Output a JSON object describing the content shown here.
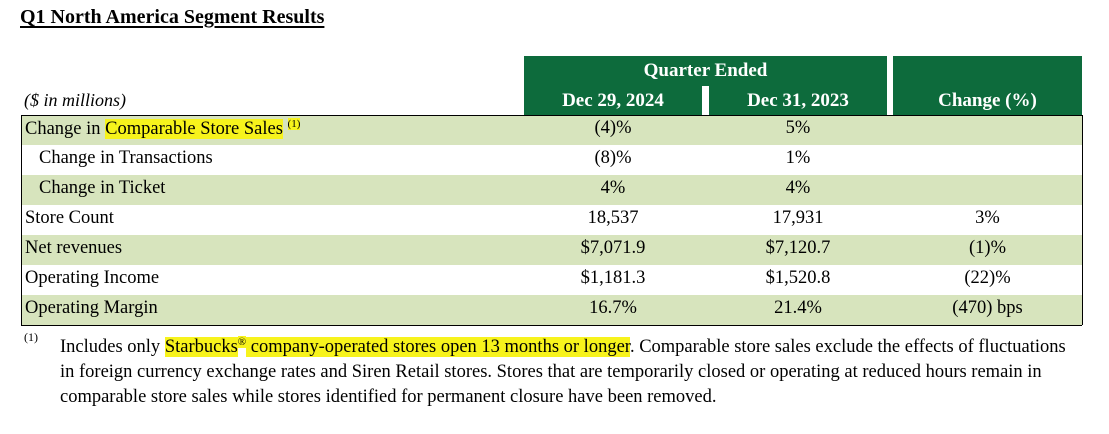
{
  "title": "Q1 North America Segment Results",
  "units": "($ in millions)",
  "header": {
    "group": "Quarter Ended",
    "col1": "Dec 29, 2024",
    "col2": "Dec 31, 2023",
    "col3": "Change (%)"
  },
  "rows": [
    {
      "label": "Change in ",
      "label_hl": "Comparable Store Sales",
      "sup": "(1)",
      "v1": "(4)%",
      "v2": "5%",
      "v3": ""
    },
    {
      "label": "Change in Transactions",
      "v1": "(8)%",
      "v2": "1%",
      "v3": ""
    },
    {
      "label": "Change in Ticket",
      "v1": "4%",
      "v2": "4%",
      "v3": ""
    },
    {
      "label": "Store Count",
      "v1": "18,537",
      "v2": "17,931",
      "v3": "3%"
    },
    {
      "label": "Net revenues",
      "v1": "$7,071.9",
      "v2": "$7,120.7",
      "v3": "(1)%"
    },
    {
      "label": "Operating Income",
      "v1": "$1,181.3",
      "v2": "$1,520.8",
      "v3": "(22)%"
    },
    {
      "label": "Operating Margin",
      "v1": "16.7%",
      "v2": "21.4%",
      "v3": "(470) bps"
    }
  ],
  "footnote": {
    "mark": "(1)",
    "pre": "Includes only ",
    "hl1": "Starbucks",
    "reg": "®",
    "hl2": " company-operated stores open 13 months or longer",
    "post": ". Comparable store sales exclude the effects of fluctuations in foreign currency exchange rates and Siren Retail stores. Stores that are temporarily closed or operating at reduced hours remain in comparable store sales while stores identified for permanent closure have been removed."
  },
  "colors": {
    "header_green": "#0d6b3c",
    "row_green": "#d7e4bd",
    "highlight": "#f7f31c"
  }
}
